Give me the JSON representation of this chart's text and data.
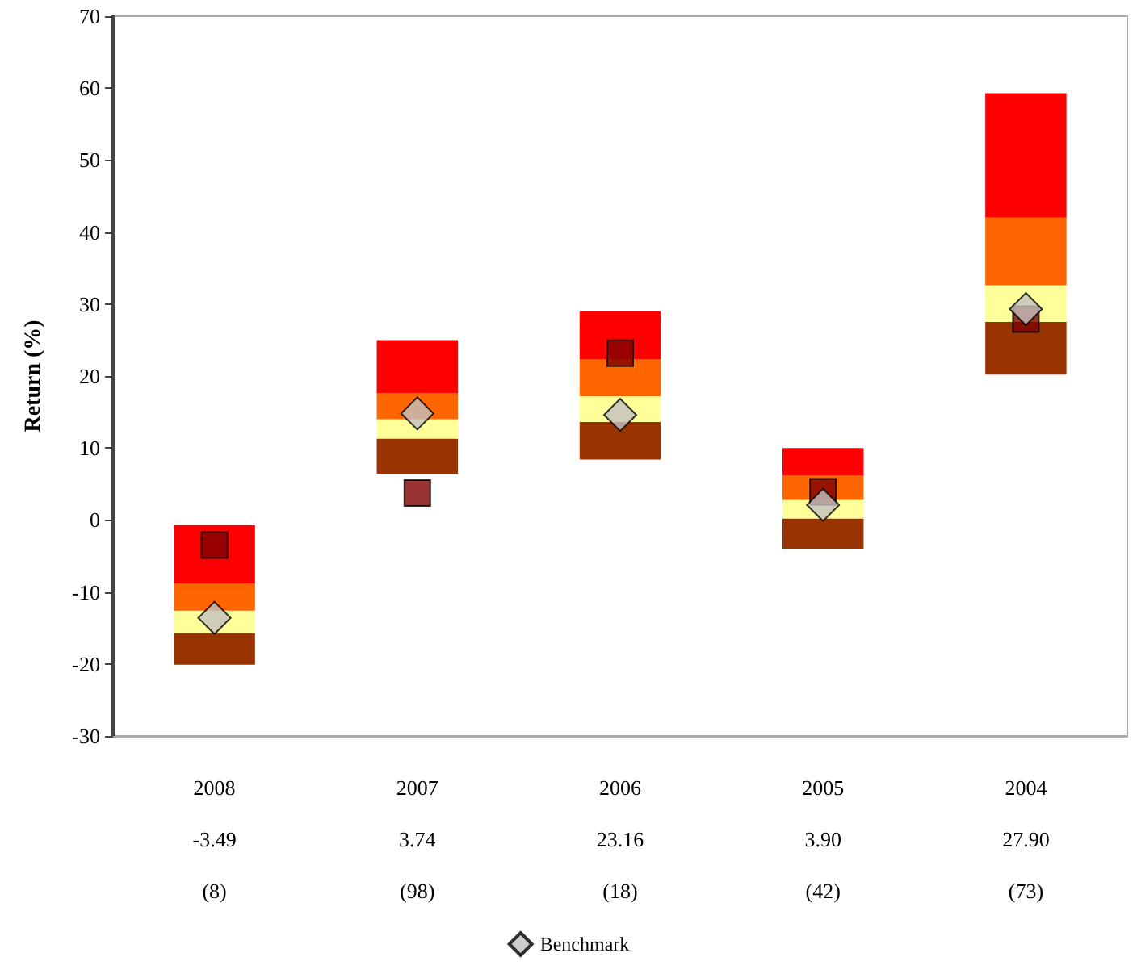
{
  "chart_data": {
    "type": "bar",
    "ylabel": "Return (%)",
    "categories": [
      "2008\n\n-3.49\n\n(8)",
      "2007\n\n3.74\n\n(98)",
      "2006\n\n23.16\n\n(18)",
      "2005\n\n3.90\n\n(42)",
      "2004\n\n27.90\n\n(73)"
    ],
    "series": [
      {
        "color": "#993300",
        "base": [
          -20.1,
          6.4,
          8.4,
          -4.0,
          20.2
        ],
        "values": [
          4.4,
          4.9,
          5.2,
          4.2,
          7.3
        ]
      },
      {
        "color": "#ffff99",
        "base": [
          -15.7,
          11.3,
          13.6,
          0.2,
          27.5
        ],
        "values": [
          3.1,
          2.7,
          3.6,
          2.6,
          5.1
        ]
      },
      {
        "color": "#ff6600",
        "base": [
          -12.6,
          14.0,
          17.2,
          2.8,
          32.6
        ],
        "values": [
          3.8,
          3.6,
          5.1,
          3.4,
          9.4
        ]
      },
      {
        "color": "#ff0000",
        "base": [
          -8.8,
          17.6,
          22.3,
          6.2,
          42.0
        ],
        "values": [
          8.1,
          7.4,
          6.7,
          3.8,
          17.3
        ]
      },
      {
        "type": "scatter",
        "marker": "square",
        "color": "#800000",
        "values": [
          -3.49,
          3.74,
          23.16,
          3.9,
          27.9
        ]
      },
      {
        "type": "scatter",
        "marker": "diamond",
        "name": "Benchmark",
        "color": "#c0c0c0",
        "values": [
          -13.6,
          14.8,
          14.6,
          2.1,
          29.3
        ]
      }
    ],
    "ylim": [
      -30,
      70
    ],
    "yticks": [
      -30,
      -20,
      -10,
      0,
      10,
      20,
      30,
      40,
      50,
      60,
      70
    ],
    "grid": false,
    "legend": "bottom"
  }
}
